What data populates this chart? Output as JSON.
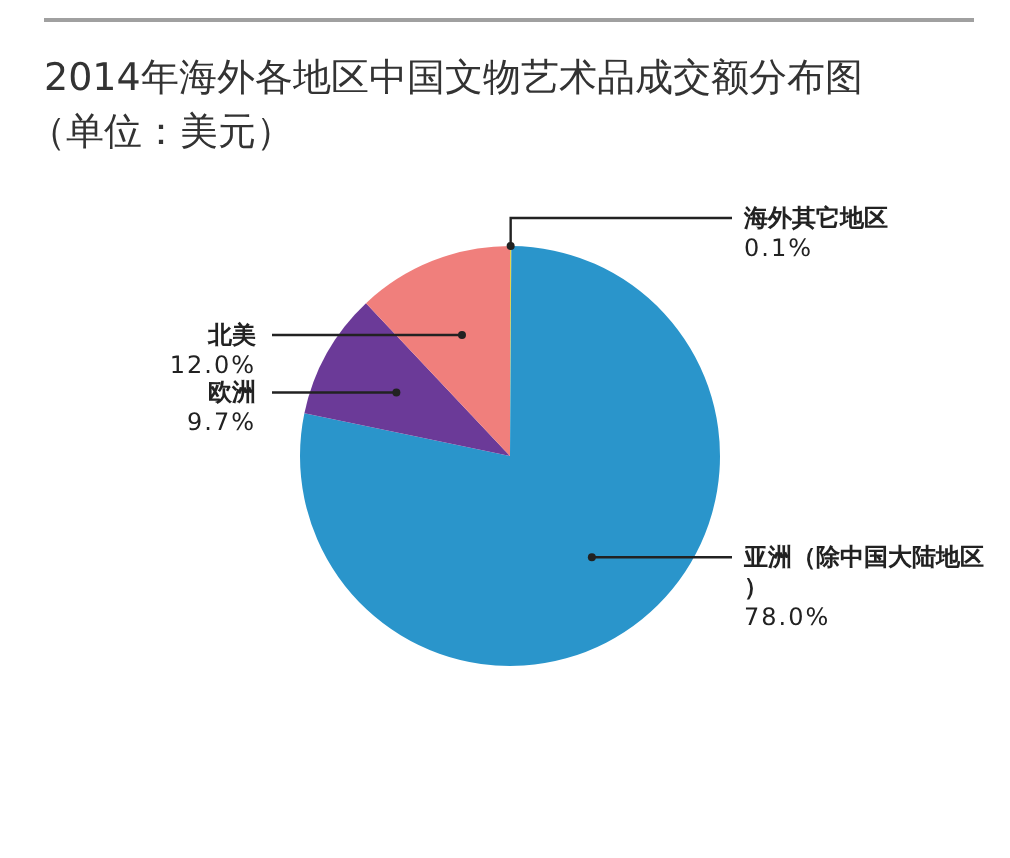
{
  "chart_data": {
    "type": "pie",
    "title": "2014年海外各地区中国文物艺术品成交额分布图",
    "subtitle": "（单位：美元）",
    "categories": [
      "海外其它地区",
      "亚洲（除中国大陆地区）",
      "欧洲",
      "北美"
    ],
    "values": [
      0.1,
      78.0,
      9.7,
      12.0
    ],
    "value_labels": [
      "0.1%",
      "78.0%",
      "9.7%",
      "12.0%"
    ],
    "colors": [
      "#e6d24a",
      "#2a95cb",
      "#6b3a98",
      "#f07f7c"
    ]
  }
}
